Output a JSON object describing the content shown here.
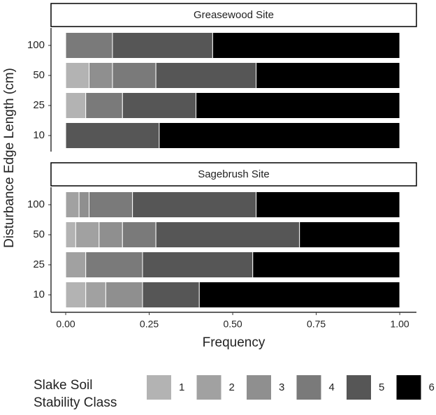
{
  "chart_data": {
    "type": "bar",
    "orientation": "horizontal",
    "stacked": true,
    "x_label": "Frequency",
    "y_label": "Disturbance Edge Length (cm)",
    "legend_title": [
      "Slake Soil",
      "Stability Class"
    ],
    "categories": [
      "100",
      "50",
      "25",
      "10"
    ],
    "xlim": [
      -0.044,
      1.05
    ],
    "xticks": [
      {
        "value": 0,
        "label": "0.00"
      },
      {
        "value": 0.25,
        "label": "0.25"
      },
      {
        "value": 0.5,
        "label": "0.50"
      },
      {
        "value": 0.75,
        "label": "0.75"
      },
      {
        "value": 1,
        "label": "1.00"
      }
    ],
    "series": [
      {
        "name": "1",
        "color": "#b3b3b3"
      },
      {
        "name": "2",
        "color": "#a1a1a1"
      },
      {
        "name": "3",
        "color": "#8f8f8f"
      },
      {
        "name": "4",
        "color": "#7a7a7a"
      },
      {
        "name": "5",
        "color": "#565656"
      },
      {
        "name": "6",
        "color": "#000000"
      }
    ],
    "facets": [
      {
        "title": "Greasewood Site",
        "values": [
          [
            0,
            0.07,
            0.06,
            0
          ],
          [
            0,
            0,
            0,
            0
          ],
          [
            0,
            0.07,
            0,
            0
          ],
          [
            0.14,
            0.13,
            0.11,
            0
          ],
          [
            0.3,
            0.3,
            0.22,
            0.28
          ],
          [
            0.56,
            0.43,
            0.61,
            0.72
          ]
        ]
      },
      {
        "title": "Sagebrush Site",
        "values": [
          [
            0,
            0.03,
            0,
            0.06
          ],
          [
            0.04,
            0.07,
            0.06,
            0.06
          ],
          [
            0.03,
            0.07,
            0,
            0.11
          ],
          [
            0.13,
            0.1,
            0.17,
            0
          ],
          [
            0.37,
            0.43,
            0.33,
            0.17
          ],
          [
            0.43,
            0.3,
            0.44,
            0.6
          ]
        ]
      }
    ]
  }
}
